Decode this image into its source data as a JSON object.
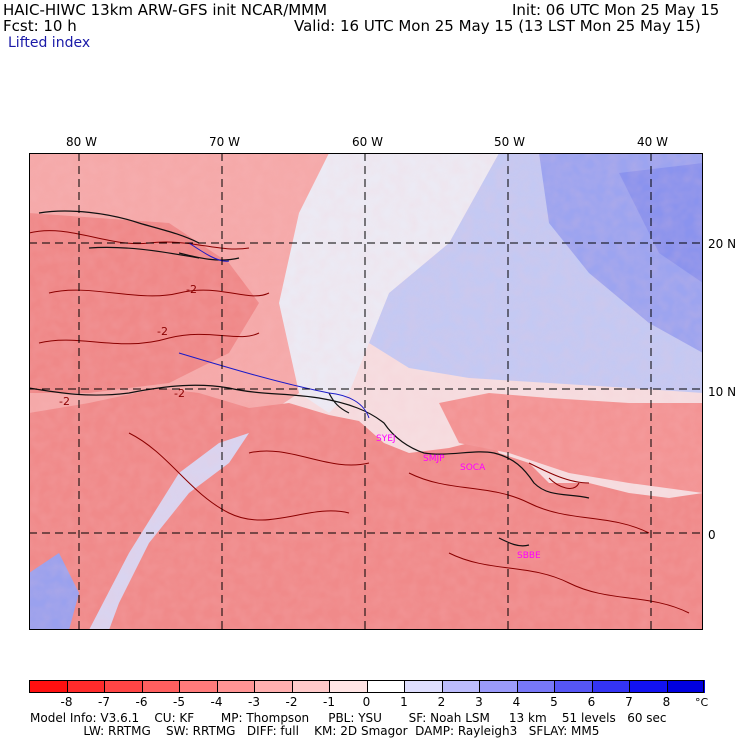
{
  "header": {
    "line1_left": "HAIC-HIWC 13km ARW-GFS init    NCAR/MMM",
    "line1_right": "Init: 06 UTC Mon 25 May 15",
    "fcst_label": "Fcst:    10 h",
    "valid": "Valid: 16 UTC Mon 25 May 15 (13 LST Mon 25 May 15)",
    "field": "Lifted index"
  },
  "map": {
    "lon_labels": [
      "80 W",
      "70 W",
      "60 W",
      "50 W",
      "40 W"
    ],
    "lat_labels": [
      "20 N",
      "10 N",
      "0"
    ],
    "station_labels": [
      "SYEJ",
      "SMJP",
      "SOCA",
      "SBBE"
    ],
    "contour_labels": [
      "-2",
      "-2",
      "-2",
      "-2"
    ],
    "colors": {
      "land_warm": "#f28c8c",
      "sea_warm": "#f8b7b7",
      "neutral": "#f7ecee",
      "cool": "#b8c0f2",
      "cold": "#8893ee",
      "coast": "#111111",
      "river": "#1a1ac8",
      "contour": "#8b0000",
      "station": "#ff00ff"
    }
  },
  "colorbar": {
    "ticks": [
      "-8",
      "-7",
      "-6",
      "-5",
      "-4",
      "-3",
      "-2",
      "-1",
      "0",
      "1",
      "2",
      "3",
      "4",
      "5",
      "6",
      "7",
      "8"
    ],
    "unit": "°C",
    "swatches": [
      "#ff1010",
      "#ff2b2b",
      "#ff4545",
      "#ff5f5f",
      "#ff7b7b",
      "#ff9494",
      "#ffafaf",
      "#ffcaca",
      "#ffe4e4",
      "#ffffff",
      "#dedefe",
      "#bcbcfc",
      "#9a9afa",
      "#7878f8",
      "#5656f6",
      "#3434f4",
      "#1212f2",
      "#0000e0"
    ]
  },
  "model_info": {
    "line1": "Model Info: V3.6.1    CU: KF       MP: Thompson     PBL: YSU       SF: Noah LSM     13 km    51 levels   60 sec",
    "line2": "              LW: RRTMG    SW: RRTMG   DIFF: full    KM: 2D Smagor  DAMP: Rayleigh3   SFLAY: MM5"
  }
}
